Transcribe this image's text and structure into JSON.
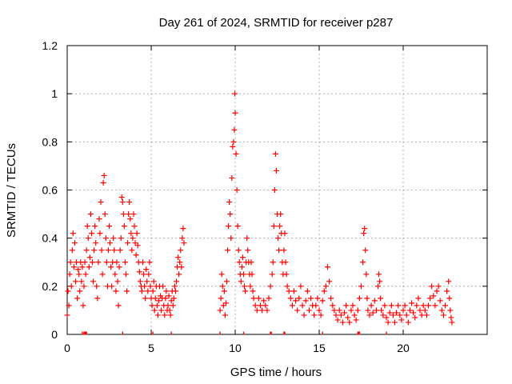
{
  "chart_data": {
    "type": "scatter",
    "title": "Day 261 of 2024, SRMTID for receiver p287",
    "xlabel": "GPS time / hours",
    "ylabel": "SRMTID / TECUs",
    "xlim": [
      0,
      25
    ],
    "ylim": [
      0,
      1.2
    ],
    "grid": true,
    "marker": "+",
    "color": "#ff0000",
    "x_ticks": [
      0,
      5,
      10,
      15,
      20
    ],
    "x_tick_labels": [
      "0",
      "5",
      "10",
      "15",
      "20"
    ],
    "y_ticks": [
      0,
      0.2,
      0.4,
      0.6,
      0.8,
      1,
      1.2
    ],
    "y_tick_labels": [
      "0",
      "0.2",
      "0.4",
      "0.6",
      "0.8",
      "1",
      "1.2"
    ],
    "series": [
      {
        "name": "SRMTID",
        "points": [
          [
            0.0,
            0.08
          ],
          [
            0.05,
            0.18
          ],
          [
            0.1,
            0.12
          ],
          [
            0.15,
            0.25
          ],
          [
            0.2,
            0.3
          ],
          [
            0.25,
            0.2
          ],
          [
            0.3,
            0.35
          ],
          [
            0.35,
            0.42
          ],
          [
            0.4,
            0.28
          ],
          [
            0.45,
            0.38
          ],
          [
            0.5,
            0.22
          ],
          [
            0.55,
            0.3
          ],
          [
            0.6,
            0.15
          ],
          [
            0.65,
            0.27
          ],
          [
            0.7,
            0.25
          ],
          [
            0.75,
            0.18
          ],
          [
            0.8,
            0.3
          ],
          [
            0.85,
            0.22
          ],
          [
            0.9,
            0.28
          ],
          [
            0.95,
            0.12
          ],
          [
            1.0,
            0.2
          ],
          [
            1.05,
            0.3
          ],
          [
            1.1,
            0.25
          ],
          [
            1.15,
            0.35
          ],
          [
            1.2,
            0.45
          ],
          [
            1.25,
            0.4
          ],
          [
            1.3,
            0.28
          ],
          [
            1.35,
            0.32
          ],
          [
            1.4,
            0.5
          ],
          [
            1.45,
            0.42
          ],
          [
            1.5,
            0.3
          ],
          [
            1.55,
            0.22
          ],
          [
            1.6,
            0.35
          ],
          [
            1.65,
            0.45
          ],
          [
            1.7,
            0.38
          ],
          [
            1.75,
            0.2
          ],
          [
            1.8,
            0.15
          ],
          [
            1.85,
            0.3
          ],
          [
            1.9,
            0.48
          ],
          [
            1.95,
            0.42
          ],
          [
            2.0,
            0.55
          ],
          [
            2.05,
            0.35
          ],
          [
            2.1,
            0.25
          ],
          [
            2.15,
            0.63
          ],
          [
            2.2,
            0.66
          ],
          [
            2.25,
            0.5
          ],
          [
            2.3,
            0.4
          ],
          [
            2.35,
            0.3
          ],
          [
            2.4,
            0.2
          ],
          [
            2.45,
            0.35
          ],
          [
            2.5,
            0.45
          ],
          [
            2.55,
            0.38
          ],
          [
            2.6,
            0.28
          ],
          [
            2.65,
            0.2
          ],
          [
            2.7,
            0.3
          ],
          [
            2.75,
            0.4
          ],
          [
            2.8,
            0.35
          ],
          [
            2.85,
            0.25
          ],
          [
            2.9,
            0.18
          ],
          [
            2.95,
            0.3
          ],
          [
            3.0,
            0.22
          ],
          [
            3.05,
            0.12
          ],
          [
            3.1,
            0.28
          ],
          [
            3.15,
            0.35
          ],
          [
            3.2,
            0.4
          ],
          [
            3.25,
            0.57
          ],
          [
            3.3,
            0.55
          ],
          [
            3.35,
            0.5
          ],
          [
            3.4,
            0.45
          ],
          [
            3.45,
            0.3
          ],
          [
            3.5,
            0.25
          ],
          [
            3.55,
            0.18
          ],
          [
            3.6,
            0.38
          ],
          [
            3.65,
            0.5
          ],
          [
            3.7,
            0.55
          ],
          [
            3.75,
            0.48
          ],
          [
            3.8,
            0.42
          ],
          [
            3.85,
            0.35
          ],
          [
            3.9,
            0.4
          ],
          [
            3.95,
            0.5
          ],
          [
            4.0,
            0.45
          ],
          [
            4.05,
            0.38
          ],
          [
            4.1,
            0.33
          ],
          [
            4.15,
            0.42
          ],
          [
            4.2,
            0.37
          ],
          [
            4.25,
            0.3
          ],
          [
            4.3,
            0.26
          ],
          [
            4.35,
            0.22
          ],
          [
            4.4,
            0.2
          ],
          [
            4.45,
            0.18
          ],
          [
            4.5,
            0.3
          ],
          [
            4.55,
            0.25
          ],
          [
            4.6,
            0.2
          ],
          [
            4.65,
            0.15
          ],
          [
            4.7,
            0.27
          ],
          [
            4.75,
            0.22
          ],
          [
            4.8,
            0.18
          ],
          [
            4.85,
            0.25
          ],
          [
            4.9,
            0.3
          ],
          [
            4.95,
            0.2
          ],
          [
            5.0,
            0.15
          ],
          [
            5.05,
            0.12
          ],
          [
            5.1,
            0.18
          ],
          [
            5.15,
            0.22
          ],
          [
            5.2,
            0.1
          ],
          [
            5.25,
            0.15
          ],
          [
            5.3,
            0.2
          ],
          [
            5.35,
            0.12
          ],
          [
            5.4,
            0.08
          ],
          [
            5.45,
            0.14
          ],
          [
            5.5,
            0.2
          ],
          [
            5.55,
            0.16
          ],
          [
            5.6,
            0.1
          ],
          [
            5.65,
            0.15
          ],
          [
            5.7,
            0.2
          ],
          [
            5.75,
            0.12
          ],
          [
            5.8,
            0.08
          ],
          [
            5.85,
            0.15
          ],
          [
            5.9,
            0.18
          ],
          [
            5.95,
            0.1
          ],
          [
            6.0,
            0.12
          ],
          [
            6.05,
            0.16
          ],
          [
            6.1,
            0.1
          ],
          [
            6.15,
            0.08
          ],
          [
            6.2,
            0.14
          ],
          [
            6.25,
            0.18
          ],
          [
            6.3,
            0.12
          ],
          [
            6.35,
            0.15
          ],
          [
            6.4,
            0.2
          ],
          [
            6.45,
            0.18
          ],
          [
            6.5,
            0.22
          ],
          [
            6.55,
            0.28
          ],
          [
            6.6,
            0.32
          ],
          [
            6.65,
            0.25
          ],
          [
            6.7,
            0.3
          ],
          [
            6.75,
            0.35
          ],
          [
            6.8,
            0.28
          ],
          [
            6.85,
            0.4
          ],
          [
            6.9,
            0.44
          ],
          [
            6.95,
            0.38
          ],
          [
            9.1,
            0.1
          ],
          [
            9.15,
            0.15
          ],
          [
            9.2,
            0.25
          ],
          [
            9.25,
            0.2
          ],
          [
            9.3,
            0.12
          ],
          [
            9.35,
            0.18
          ],
          [
            9.4,
            0.08
          ],
          [
            9.45,
            0.13
          ],
          [
            9.5,
            0.22
          ],
          [
            9.55,
            0.35
          ],
          [
            9.6,
            0.45
          ],
          [
            9.65,
            0.55
          ],
          [
            9.7,
            0.5
          ],
          [
            9.75,
            0.4
          ],
          [
            9.8,
            0.65
          ],
          [
            9.85,
            0.78
          ],
          [
            9.9,
            0.8
          ],
          [
            9.95,
            0.85
          ],
          [
            9.98,
            1.0
          ],
          [
            10.0,
            0.92
          ],
          [
            10.05,
            0.75
          ],
          [
            10.1,
            0.6
          ],
          [
            10.15,
            0.45
          ],
          [
            10.2,
            0.35
          ],
          [
            10.25,
            0.3
          ],
          [
            10.3,
            0.25
          ],
          [
            10.35,
            0.22
          ],
          [
            10.4,
            0.28
          ],
          [
            10.45,
            0.32
          ],
          [
            10.5,
            0.25
          ],
          [
            10.55,
            0.2
          ],
          [
            10.6,
            0.18
          ],
          [
            10.65,
            0.3
          ],
          [
            10.7,
            0.4
          ],
          [
            10.75,
            0.35
          ],
          [
            10.8,
            0.3
          ],
          [
            10.85,
            0.25
          ],
          [
            10.9,
            0.2
          ],
          [
            10.95,
            0.3
          ],
          [
            11.0,
            0.25
          ],
          [
            11.05,
            0.18
          ],
          [
            11.1,
            0.15
          ],
          [
            11.2,
            0.12
          ],
          [
            11.3,
            0.1
          ],
          [
            11.4,
            0.15
          ],
          [
            11.5,
            0.12
          ],
          [
            11.6,
            0.1
          ],
          [
            11.7,
            0.14
          ],
          [
            11.8,
            0.12
          ],
          [
            11.9,
            0.1
          ],
          [
            12.0,
            0.15
          ],
          [
            12.1,
            0.2
          ],
          [
            12.2,
            0.25
          ],
          [
            12.25,
            0.3
          ],
          [
            12.3,
            0.45
          ],
          [
            12.35,
            0.6
          ],
          [
            12.4,
            0.75
          ],
          [
            12.45,
            0.68
          ],
          [
            12.5,
            0.5
          ],
          [
            12.55,
            0.4
          ],
          [
            12.6,
            0.35
          ],
          [
            12.65,
            0.45
          ],
          [
            12.7,
            0.5
          ],
          [
            12.75,
            0.42
          ],
          [
            12.8,
            0.3
          ],
          [
            12.85,
            0.25
          ],
          [
            12.9,
            0.35
          ],
          [
            12.95,
            0.42
          ],
          [
            13.0,
            0.3
          ],
          [
            13.05,
            0.25
          ],
          [
            13.1,
            0.2
          ],
          [
            13.2,
            0.18
          ],
          [
            13.3,
            0.15
          ],
          [
            13.4,
            0.12
          ],
          [
            13.5,
            0.18
          ],
          [
            13.6,
            0.14
          ],
          [
            13.7,
            0.1
          ],
          [
            13.8,
            0.15
          ],
          [
            13.9,
            0.2
          ],
          [
            14.0,
            0.12
          ],
          [
            14.1,
            0.08
          ],
          [
            14.2,
            0.14
          ],
          [
            14.3,
            0.18
          ],
          [
            14.4,
            0.1
          ],
          [
            14.5,
            0.15
          ],
          [
            14.6,
            0.12
          ],
          [
            14.7,
            0.08
          ],
          [
            14.8,
            0.12
          ],
          [
            14.9,
            0.15
          ],
          [
            15.0,
            0.1
          ],
          [
            15.1,
            0.08
          ],
          [
            15.2,
            0.14
          ],
          [
            15.3,
            0.18
          ],
          [
            15.4,
            0.2
          ],
          [
            15.5,
            0.28
          ],
          [
            15.6,
            0.22
          ],
          [
            15.7,
            0.15
          ],
          [
            15.8,
            0.12
          ],
          [
            15.9,
            0.1
          ],
          [
            16.0,
            0.08
          ],
          [
            16.1,
            0.06
          ],
          [
            16.2,
            0.1
          ],
          [
            16.3,
            0.08
          ],
          [
            16.4,
            0.05
          ],
          [
            16.5,
            0.09
          ],
          [
            16.6,
            0.12
          ],
          [
            16.7,
            0.07
          ],
          [
            16.8,
            0.05
          ],
          [
            16.9,
            0.1
          ],
          [
            17.0,
            0.12
          ],
          [
            17.1,
            0.08
          ],
          [
            17.2,
            0.06
          ],
          [
            17.3,
            0.1
          ],
          [
            17.4,
            0.15
          ],
          [
            17.5,
            0.2
          ],
          [
            17.6,
            0.3
          ],
          [
            17.65,
            0.42
          ],
          [
            17.7,
            0.44
          ],
          [
            17.75,
            0.35
          ],
          [
            17.8,
            0.25
          ],
          [
            17.85,
            0.15
          ],
          [
            17.9,
            0.1
          ],
          [
            18.0,
            0.08
          ],
          [
            18.1,
            0.12
          ],
          [
            18.2,
            0.09
          ],
          [
            18.3,
            0.14
          ],
          [
            18.4,
            0.1
          ],
          [
            18.5,
            0.2
          ],
          [
            18.55,
            0.25
          ],
          [
            18.6,
            0.22
          ],
          [
            18.65,
            0.15
          ],
          [
            18.7,
            0.1
          ],
          [
            18.8,
            0.08
          ],
          [
            18.9,
            0.12
          ],
          [
            19.0,
            0.07
          ],
          [
            19.1,
            0.05
          ],
          [
            19.2,
            0.09
          ],
          [
            19.3,
            0.12
          ],
          [
            19.4,
            0.08
          ],
          [
            19.5,
            0.05
          ],
          [
            19.6,
            0.09
          ],
          [
            19.7,
            0.12
          ],
          [
            19.8,
            0.08
          ],
          [
            19.9,
            0.06
          ],
          [
            20.0,
            0.1
          ],
          [
            20.1,
            0.12
          ],
          [
            20.2,
            0.08
          ],
          [
            20.3,
            0.05
          ],
          [
            20.4,
            0.1
          ],
          [
            20.5,
            0.13
          ],
          [
            20.6,
            0.09
          ],
          [
            20.7,
            0.07
          ],
          [
            20.8,
            0.12
          ],
          [
            20.9,
            0.15
          ],
          [
            21.0,
            0.1
          ],
          [
            21.1,
            0.08
          ],
          [
            21.2,
            0.12
          ],
          [
            21.3,
            0.1
          ],
          [
            21.4,
            0.08
          ],
          [
            21.5,
            0.12
          ],
          [
            21.6,
            0.15
          ],
          [
            21.7,
            0.2
          ],
          [
            21.8,
            0.16
          ],
          [
            21.9,
            0.12
          ],
          [
            22.0,
            0.18
          ],
          [
            22.1,
            0.2
          ],
          [
            22.2,
            0.14
          ],
          [
            22.3,
            0.1
          ],
          [
            22.4,
            0.08
          ],
          [
            22.5,
            0.12
          ],
          [
            22.6,
            0.18
          ],
          [
            22.7,
            0.22
          ],
          [
            22.75,
            0.15
          ],
          [
            22.8,
            0.1
          ],
          [
            22.85,
            0.07
          ],
          [
            22.9,
            0.05
          ]
        ]
      }
    ],
    "zero_marks_x": [
      0.9,
      1.0,
      1.05,
      1.1,
      1.15,
      3.3,
      5.1,
      6.2,
      9.1,
      10.5,
      12.1,
      12.15,
      12.9,
      12.95,
      15.2,
      17.3,
      17.35,
      17.4,
      19.0
    ]
  }
}
